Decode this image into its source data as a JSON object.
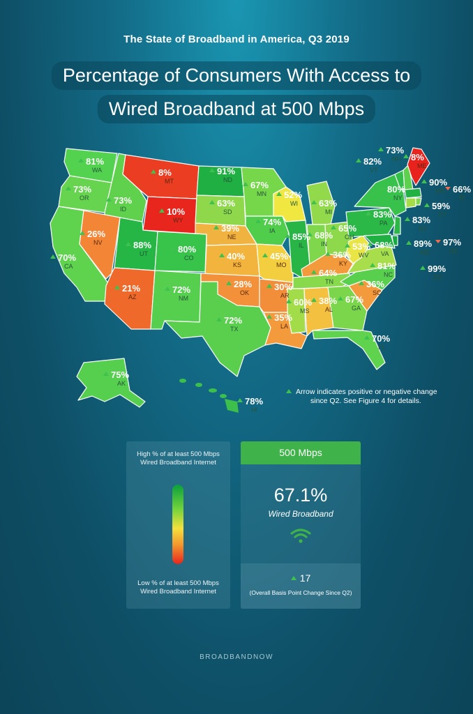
{
  "header": {
    "eyebrow": "The State of Broadband in America, Q3 2019",
    "title_line1": "Percentage of Consumers With Access to",
    "title_line2": "Wired Broadband at 500 Mbps"
  },
  "colors": {
    "up_arrow": "#3fc14f",
    "down_arrow": "#f46a4e",
    "green_dark": "#14a83f",
    "red": "#e8261e"
  },
  "states": [
    {
      "abbr": "WA",
      "pct": "81%",
      "change": "up"
    },
    {
      "abbr": "OR",
      "pct": "73%",
      "change": "up"
    },
    {
      "abbr": "CA",
      "pct": "70%",
      "change": "up"
    },
    {
      "abbr": "ID",
      "pct": "73%",
      "change": "up"
    },
    {
      "abbr": "NV",
      "pct": "26%",
      "change": "up"
    },
    {
      "abbr": "MT",
      "pct": "8%",
      "change": "up"
    },
    {
      "abbr": "WY",
      "pct": "10%",
      "change": "up"
    },
    {
      "abbr": "UT",
      "pct": "88%",
      "change": "up"
    },
    {
      "abbr": "AZ",
      "pct": "21%",
      "change": "up"
    },
    {
      "abbr": "CO",
      "pct": "80%",
      "change": "up"
    },
    {
      "abbr": "NM",
      "pct": "72%",
      "change": "up"
    },
    {
      "abbr": "ND",
      "pct": "91%",
      "change": "up"
    },
    {
      "abbr": "SD",
      "pct": "63%",
      "change": "up"
    },
    {
      "abbr": "NE",
      "pct": "39%",
      "change": "up"
    },
    {
      "abbr": "KS",
      "pct": "40%",
      "change": "up"
    },
    {
      "abbr": "OK",
      "pct": "28%",
      "change": "up"
    },
    {
      "abbr": "TX",
      "pct": "72%",
      "change": "up"
    },
    {
      "abbr": "MN",
      "pct": "67%",
      "change": "up"
    },
    {
      "abbr": "IA",
      "pct": "74%",
      "change": "up"
    },
    {
      "abbr": "MO",
      "pct": "45%",
      "change": "up"
    },
    {
      "abbr": "AR",
      "pct": "30%",
      "change": "up"
    },
    {
      "abbr": "LA",
      "pct": "35%",
      "change": "up"
    },
    {
      "abbr": "WI",
      "pct": "52%",
      "change": "up"
    },
    {
      "abbr": "IL",
      "pct": "85%",
      "change": "up"
    },
    {
      "abbr": "MI",
      "pct": "63%",
      "change": "up"
    },
    {
      "abbr": "IN",
      "pct": "68%",
      "change": "up"
    },
    {
      "abbr": "OH",
      "pct": "65%",
      "change": "up"
    },
    {
      "abbr": "KY",
      "pct": "36%",
      "change": "up"
    },
    {
      "abbr": "TN",
      "pct": "64%",
      "change": "up"
    },
    {
      "abbr": "MS",
      "pct": "60%",
      "change": "up"
    },
    {
      "abbr": "AL",
      "pct": "38%",
      "change": "up"
    },
    {
      "abbr": "GA",
      "pct": "67%",
      "change": "up"
    },
    {
      "abbr": "FL",
      "pct": "70%",
      "change": "up"
    },
    {
      "abbr": "SC",
      "pct": "36%",
      "change": "up"
    },
    {
      "abbr": "NC",
      "pct": "81%",
      "change": "up"
    },
    {
      "abbr": "VA",
      "pct": "68%",
      "change": "up"
    },
    {
      "abbr": "WV",
      "pct": "53%",
      "change": "up"
    },
    {
      "abbr": "PA",
      "pct": "83%",
      "change": "up"
    },
    {
      "abbr": "NY",
      "pct": "80%",
      "change": "up"
    },
    {
      "abbr": "VT",
      "pct": "82%",
      "change": "up"
    },
    {
      "abbr": "NH",
      "pct": "73%",
      "change": "up"
    },
    {
      "abbr": "ME",
      "pct": "8%",
      "change": "up"
    },
    {
      "abbr": "MA",
      "pct": "90%",
      "change": "up"
    },
    {
      "abbr": "RI",
      "pct": "66%",
      "change": "down"
    },
    {
      "abbr": "CT",
      "pct": "59%",
      "change": "up"
    },
    {
      "abbr": "NJ",
      "pct": "83%",
      "change": "up"
    },
    {
      "abbr": "MD",
      "pct": "89%",
      "change": "up"
    },
    {
      "abbr": "DE",
      "pct": "97%",
      "change": "down"
    },
    {
      "abbr": "DC",
      "pct": "99%",
      "change": "up"
    },
    {
      "abbr": "AK",
      "pct": "75%",
      "change": "up"
    },
    {
      "abbr": "HI",
      "pct": "78%",
      "change": "up"
    }
  ],
  "note": {
    "line1": "Arrow indicates positive or negative change",
    "line2": "since Q2.  See Figure 4 for details."
  },
  "legend": {
    "high": "High % of at least 500 Mbps Wired Broadband Internet",
    "low": "Low % of at least 500 Mbps Wired Broadband Internet"
  },
  "stat": {
    "header": "500 Mbps",
    "value": "67.1%",
    "label": "Wired Broadband",
    "change_value": "17",
    "change_label": "(Overall Basis Point Change Since Q2)"
  },
  "brand": "BROADBANDNOW"
}
